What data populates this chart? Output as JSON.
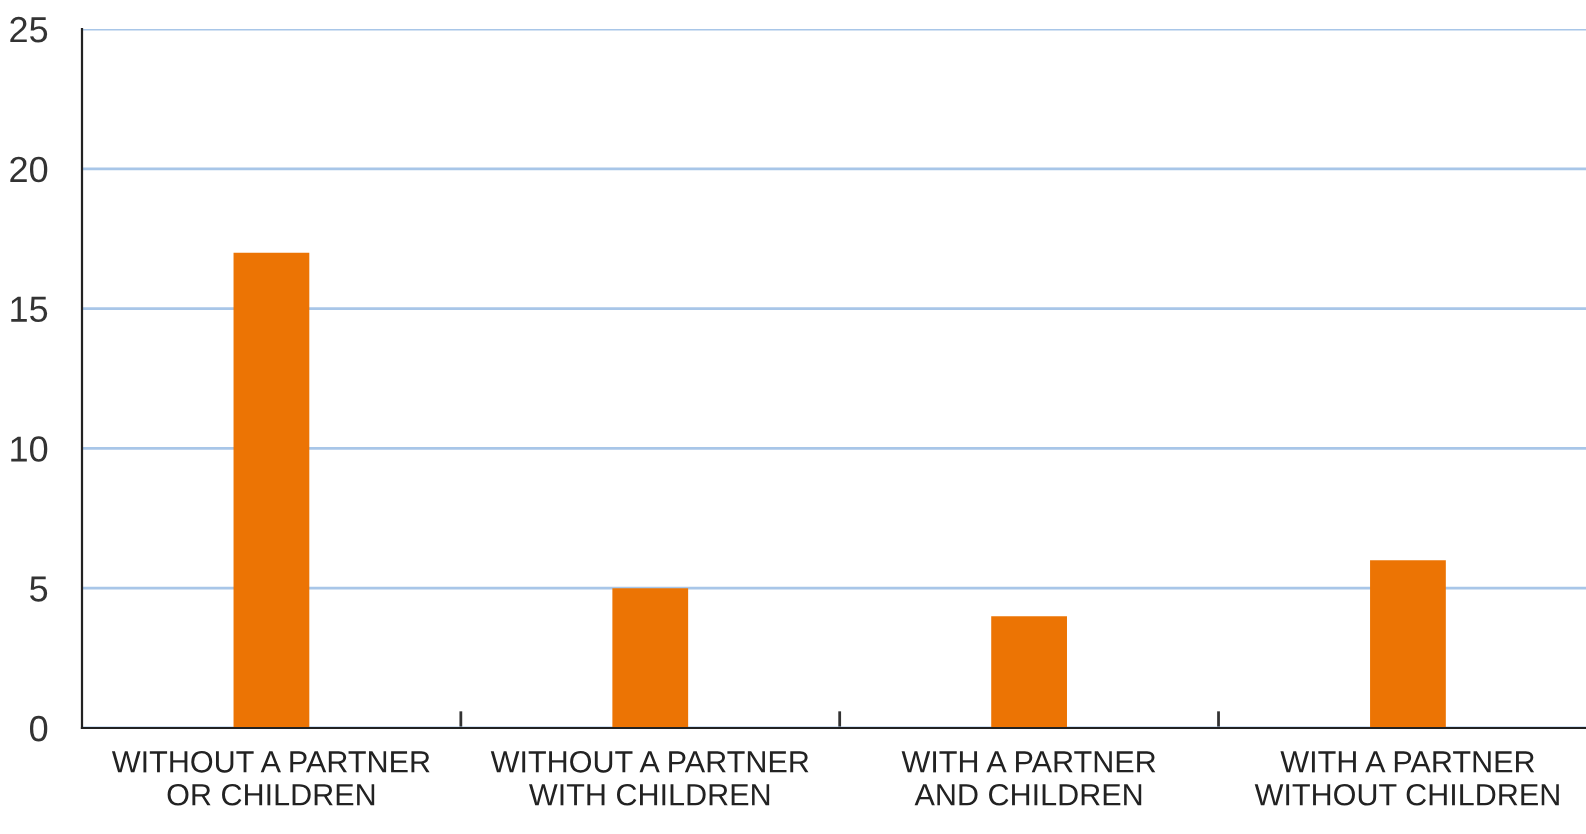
{
  "chart_data": {
    "type": "bar",
    "categories": [
      "WITHOUT A PARTNER\nOR CHILDREN",
      "WITHOUT A PARTNER\nWITH CHILDREN",
      "WITH A PARTNER\nAND CHILDREN",
      "WITH A PARTNER\nWITHOUT CHILDREN"
    ],
    "values": [
      17,
      5,
      4,
      6
    ],
    "color": "#ec7404",
    "ylim": [
      0,
      25
    ],
    "yticks": [
      0,
      5,
      10,
      15,
      20,
      25
    ],
    "grid": "y"
  }
}
